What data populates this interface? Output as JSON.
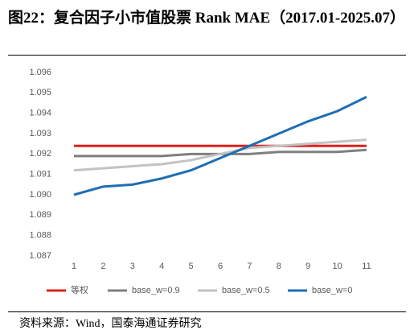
{
  "title": "图22：复合因子小市值股票 Rank MAE（2017.01-2025.07）",
  "source": "资料来源：Wind，国泰海通证券研究",
  "chart_data": {
    "type": "line",
    "categories": [
      "1",
      "2",
      "3",
      "4",
      "5",
      "6",
      "7",
      "8",
      "9",
      "10",
      "11"
    ],
    "series": [
      {
        "name": "等权",
        "color": "#e0201b",
        "values": [
          1.0924,
          1.0924,
          1.0924,
          1.0924,
          1.0924,
          1.0924,
          1.0924,
          1.0924,
          1.0924,
          1.0924,
          1.0924
        ]
      },
      {
        "name": "base_w=0.9",
        "color": "#7f7f7f",
        "values": [
          1.0919,
          1.0919,
          1.0919,
          1.0919,
          1.092,
          1.092,
          1.092,
          1.0921,
          1.0921,
          1.0921,
          1.0922
        ]
      },
      {
        "name": "base_w=0.5",
        "color": "#c3c3c3",
        "values": [
          1.0912,
          1.0913,
          1.0914,
          1.0915,
          1.0917,
          1.092,
          1.0923,
          1.0924,
          1.0925,
          1.0926,
          1.0927
        ]
      },
      {
        "name": "base_w=0",
        "color": "#1f6eb4",
        "values": [
          1.09,
          1.0904,
          1.0905,
          1.0908,
          1.0912,
          1.0918,
          1.0924,
          1.093,
          1.0936,
          1.0941,
          1.0948
        ]
      }
    ],
    "ylim": [
      1.087,
      1.096
    ],
    "yticks": [
      1.087,
      1.088,
      1.089,
      {
        "value": 1.09,
        "label": "1.090"
      },
      1.091,
      1.092,
      1.093,
      1.094,
      1.095,
      1.096
    ],
    "grid": false,
    "legend": "bottom"
  }
}
